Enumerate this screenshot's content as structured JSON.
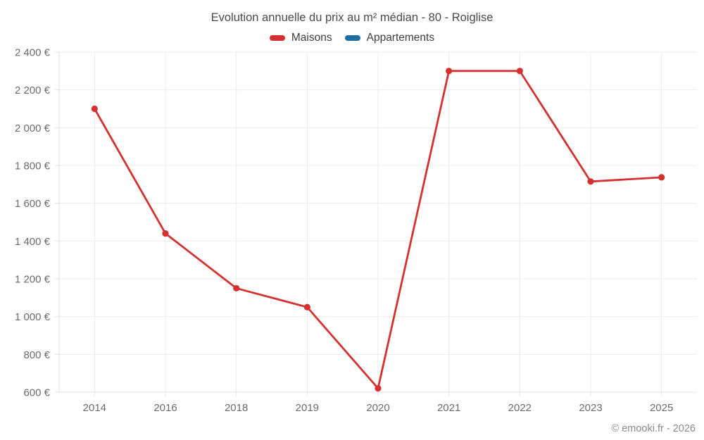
{
  "page": {
    "footer": "© emooki.fr - 2026"
  },
  "chart_data": {
    "type": "line",
    "title": "Evolution annuelle du prix au m² médian - 80 - Roiglise",
    "categories": [
      "2014",
      "2016",
      "2018",
      "2019",
      "2020",
      "2021",
      "2022",
      "2023",
      "2025"
    ],
    "series": [
      {
        "name": "Maisons",
        "color": "#d43230",
        "values": [
          2100,
          1440,
          1150,
          1050,
          620,
          2300,
          2300,
          1715,
          1737
        ]
      },
      {
        "name": "Appartements",
        "color": "#1d6ea3",
        "values": []
      }
    ],
    "xlabel": "",
    "ylabel": "",
    "ylim": [
      600,
      2400
    ],
    "y_tick_step": 200,
    "y_ticks": [
      {
        "value": 600,
        "label": "600 €"
      },
      {
        "value": 800,
        "label": "800 €"
      },
      {
        "value": 1000,
        "label": "1 000 €"
      },
      {
        "value": 1200,
        "label": "1 200 €"
      },
      {
        "value": 1400,
        "label": "1 400 €"
      },
      {
        "value": 1600,
        "label": "1 600 €"
      },
      {
        "value": 1800,
        "label": "1 800 €"
      },
      {
        "value": 2000,
        "label": "2 000 €"
      },
      {
        "value": 2200,
        "label": "2 200 €"
      },
      {
        "value": 2400,
        "label": "2 400 €"
      }
    ],
    "grid": true,
    "legend_position": "top"
  }
}
